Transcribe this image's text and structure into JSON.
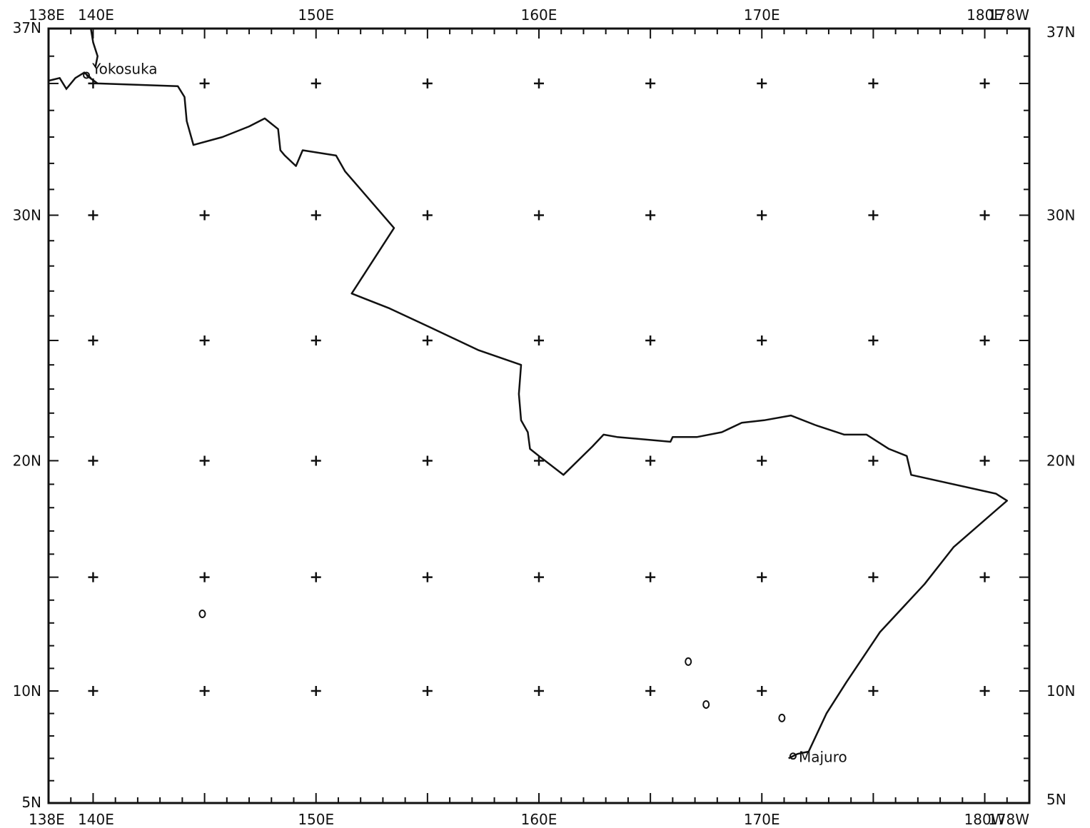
{
  "map": {
    "lon_range": [
      138,
      182
    ],
    "lat_range": [
      5,
      37
    ],
    "projection": "mercator",
    "colors": {
      "ink": "#111111",
      "background": "#ffffff"
    },
    "top_lon_labels": [
      {
        "lon": 138,
        "text": "138E"
      },
      {
        "lon": 140,
        "text": "140E"
      },
      {
        "lon": 150,
        "text": "150E"
      },
      {
        "lon": 160,
        "text": "160E"
      },
      {
        "lon": 170,
        "text": "170E"
      },
      {
        "lon": 180,
        "text": "180E"
      },
      {
        "lon": 182,
        "text": "178W"
      }
    ],
    "bottom_lon_labels": [
      {
        "lon": 138,
        "text": "138E"
      },
      {
        "lon": 140,
        "text": "140E"
      },
      {
        "lon": 150,
        "text": "150E"
      },
      {
        "lon": 160,
        "text": "160E"
      },
      {
        "lon": 170,
        "text": "170E"
      },
      {
        "lon": 180,
        "text": "180W"
      },
      {
        "lon": 182,
        "text": "178W"
      }
    ],
    "left_lat_labels": [
      {
        "lat": 37,
        "text": "37N"
      },
      {
        "lat": 30,
        "text": "30N"
      },
      {
        "lat": 20,
        "text": "20N"
      },
      {
        "lat": 10,
        "text": "10N"
      },
      {
        "lat": 5,
        "text": "5N"
      }
    ],
    "right_lat_labels": [
      {
        "lat": 37,
        "text": "37N"
      },
      {
        "lat": 30,
        "text": "30N"
      },
      {
        "lat": 20,
        "text": "20N"
      },
      {
        "lat": 10,
        "text": "10N"
      },
      {
        "lat": 5,
        "text": "5N"
      }
    ],
    "grid_lons": [
      140,
      145,
      150,
      155,
      160,
      165,
      170,
      175,
      180
    ],
    "grid_lats": [
      35,
      30,
      25,
      20,
      15,
      10
    ],
    "places": [
      {
        "name": "Yokosuka",
        "lon": 139.7,
        "lat": 35.3
      },
      {
        "name": "Majuro",
        "lon": 171.4,
        "lat": 7.1
      }
    ],
    "track": [
      [
        139.7,
        35.3
      ],
      [
        140.2,
        35.0
      ],
      [
        143.8,
        34.9
      ],
      [
        144.1,
        34.5
      ],
      [
        144.2,
        33.6
      ],
      [
        144.5,
        32.7
      ],
      [
        145.8,
        33.0
      ],
      [
        147.0,
        33.4
      ],
      [
        147.7,
        33.7
      ],
      [
        148.3,
        33.3
      ],
      [
        148.4,
        32.5
      ],
      [
        148.6,
        32.3
      ],
      [
        149.1,
        31.9
      ],
      [
        149.4,
        32.5
      ],
      [
        150.9,
        32.3
      ],
      [
        151.3,
        31.7
      ],
      [
        153.5,
        29.5
      ],
      [
        151.6,
        26.9
      ],
      [
        153.3,
        26.3
      ],
      [
        155.2,
        25.5
      ],
      [
        157.3,
        24.6
      ],
      [
        159.2,
        24.0
      ],
      [
        159.1,
        22.8
      ],
      [
        159.2,
        21.7
      ],
      [
        159.5,
        21.2
      ],
      [
        159.6,
        20.5
      ],
      [
        160.0,
        20.2
      ],
      [
        161.1,
        19.4
      ],
      [
        162.4,
        20.6
      ],
      [
        162.9,
        21.1
      ],
      [
        163.5,
        21.0
      ],
      [
        165.9,
        20.8
      ],
      [
        166.0,
        21.0
      ],
      [
        167.1,
        21.0
      ],
      [
        168.2,
        21.2
      ],
      [
        169.1,
        21.6
      ],
      [
        170.1,
        21.7
      ],
      [
        171.3,
        21.9
      ],
      [
        172.4,
        21.5
      ],
      [
        173.7,
        21.1
      ],
      [
        174.7,
        21.1
      ],
      [
        175.7,
        20.5
      ],
      [
        176.5,
        20.2
      ],
      [
        176.7,
        19.4
      ],
      [
        180.5,
        18.6
      ],
      [
        181.0,
        18.3
      ],
      [
        178.6,
        16.3
      ],
      [
        177.3,
        14.7
      ],
      [
        175.3,
        12.6
      ],
      [
        173.8,
        10.4
      ],
      [
        172.9,
        9.0
      ],
      [
        172.1,
        7.3
      ],
      [
        171.6,
        7.2
      ],
      [
        171.2,
        7.0
      ]
    ],
    "coast_segments": [
      [
        [
          138.0,
          35.1
        ],
        [
          138.5,
          35.2
        ],
        [
          138.8,
          34.8
        ],
        [
          139.2,
          35.2
        ],
        [
          139.6,
          35.4
        ],
        [
          139.9,
          35.2
        ]
      ],
      [
        [
          139.9,
          37.0
        ],
        [
          140.0,
          36.5
        ],
        [
          140.2,
          36.0
        ],
        [
          140.1,
          35.6
        ]
      ]
    ],
    "islands": [
      {
        "lon": 166.7,
        "lat": 11.3
      },
      {
        "lon": 167.5,
        "lat": 9.4
      },
      {
        "lon": 170.9,
        "lat": 8.8
      },
      {
        "lon": 144.9,
        "lat": 13.4
      }
    ]
  }
}
